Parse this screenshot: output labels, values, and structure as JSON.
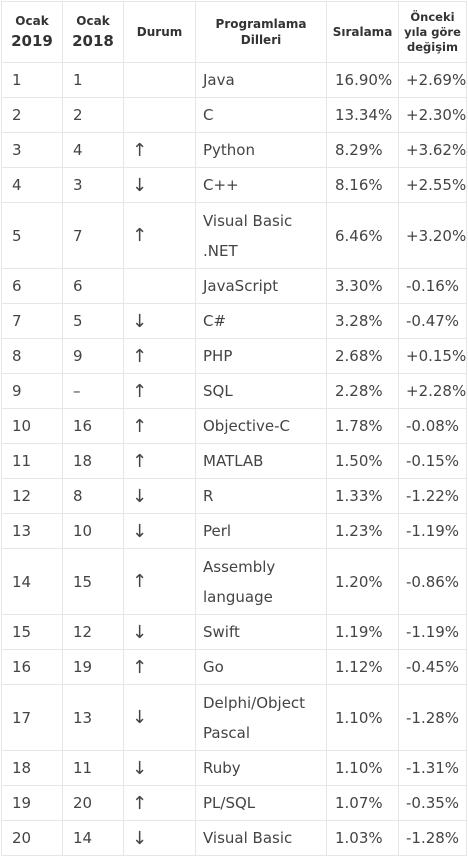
{
  "header": {
    "col1_line1": "Ocak",
    "col1_line2": "2019",
    "col2_line1": "Ocak",
    "col2_line2": "2018",
    "col3": "Durum",
    "col4_line1": "Programlama",
    "col4_line2": "Dilleri",
    "col5": "Sıralama",
    "col6_line1": "Önceki",
    "col6_line2": "yıla göre",
    "col6_line3": "değişim"
  },
  "rows": [
    {
      "rank2019": "1",
      "rank2018": "1",
      "trend": "",
      "language": "Java",
      "rating": "16.90%",
      "change": "+2.69%",
      "tall": false
    },
    {
      "rank2019": "2",
      "rank2018": "2",
      "trend": "",
      "language": "C",
      "rating": "13.34%",
      "change": "+2.30%",
      "tall": false
    },
    {
      "rank2019": "3",
      "rank2018": "4",
      "trend": "↑",
      "language": "Python",
      "rating": "8.29%",
      "change": "+3.62%",
      "tall": false
    },
    {
      "rank2019": "4",
      "rank2018": "3",
      "trend": "↓",
      "language": "C++",
      "rating": "8.16%",
      "change": "+2.55%",
      "tall": false
    },
    {
      "rank2019": "5",
      "rank2018": "7",
      "trend": "↑",
      "language": "Visual Basic .NET",
      "rating": "6.46%",
      "change": "+3.20%",
      "tall": true
    },
    {
      "rank2019": "6",
      "rank2018": "6",
      "trend": "",
      "language": "JavaScript",
      "rating": "3.30%",
      "change": "-0.16%",
      "tall": false
    },
    {
      "rank2019": "7",
      "rank2018": "5",
      "trend": "↓",
      "language": "C#",
      "rating": "3.28%",
      "change": "-0.47%",
      "tall": false
    },
    {
      "rank2019": "8",
      "rank2018": "9",
      "trend": "↑",
      "language": "PHP",
      "rating": "2.68%",
      "change": "+0.15%",
      "tall": false
    },
    {
      "rank2019": "9",
      "rank2018": "–",
      "trend": "↑",
      "language": "SQL",
      "rating": "2.28%",
      "change": "+2.28%",
      "tall": false
    },
    {
      "rank2019": "10",
      "rank2018": "16",
      "trend": "↑",
      "language": "Objective-C",
      "rating": "1.78%",
      "change": "-0.08%",
      "tall": false
    },
    {
      "rank2019": "11",
      "rank2018": "18",
      "trend": "↑",
      "language": "MATLAB",
      "rating": "1.50%",
      "change": "-0.15%",
      "tall": false
    },
    {
      "rank2019": "12",
      "rank2018": "8",
      "trend": "↓",
      "language": "R",
      "rating": "1.33%",
      "change": "-1.22%",
      "tall": false
    },
    {
      "rank2019": "13",
      "rank2018": "10",
      "trend": "↓",
      "language": "Perl",
      "rating": "1.23%",
      "change": "-1.19%",
      "tall": false
    },
    {
      "rank2019": "14",
      "rank2018": "15",
      "trend": "↑",
      "language": "Assembly language",
      "rating": "1.20%",
      "change": "-0.86%",
      "tall": true
    },
    {
      "rank2019": "15",
      "rank2018": "12",
      "trend": "↓",
      "language": "Swift",
      "rating": "1.19%",
      "change": "-1.19%",
      "tall": false
    },
    {
      "rank2019": "16",
      "rank2018": "19",
      "trend": "↑",
      "language": "Go",
      "rating": "1.12%",
      "change": "-0.45%",
      "tall": false
    },
    {
      "rank2019": "17",
      "rank2018": "13",
      "trend": "↓",
      "language": "Delphi/Object Pascal",
      "rating": "1.10%",
      "change": "-1.28%",
      "tall": true
    },
    {
      "rank2019": "18",
      "rank2018": "11",
      "trend": "↓",
      "language": "Ruby",
      "rating": "1.10%",
      "change": "-1.31%",
      "tall": false
    },
    {
      "rank2019": "19",
      "rank2018": "20",
      "trend": "↑",
      "language": "PL/SQL",
      "rating": "1.07%",
      "change": "-0.35%",
      "tall": false
    },
    {
      "rank2019": "20",
      "rank2018": "14",
      "trend": "↓",
      "language": "Visual Basic",
      "rating": "1.03%",
      "change": "-1.28%",
      "tall": false
    }
  ]
}
